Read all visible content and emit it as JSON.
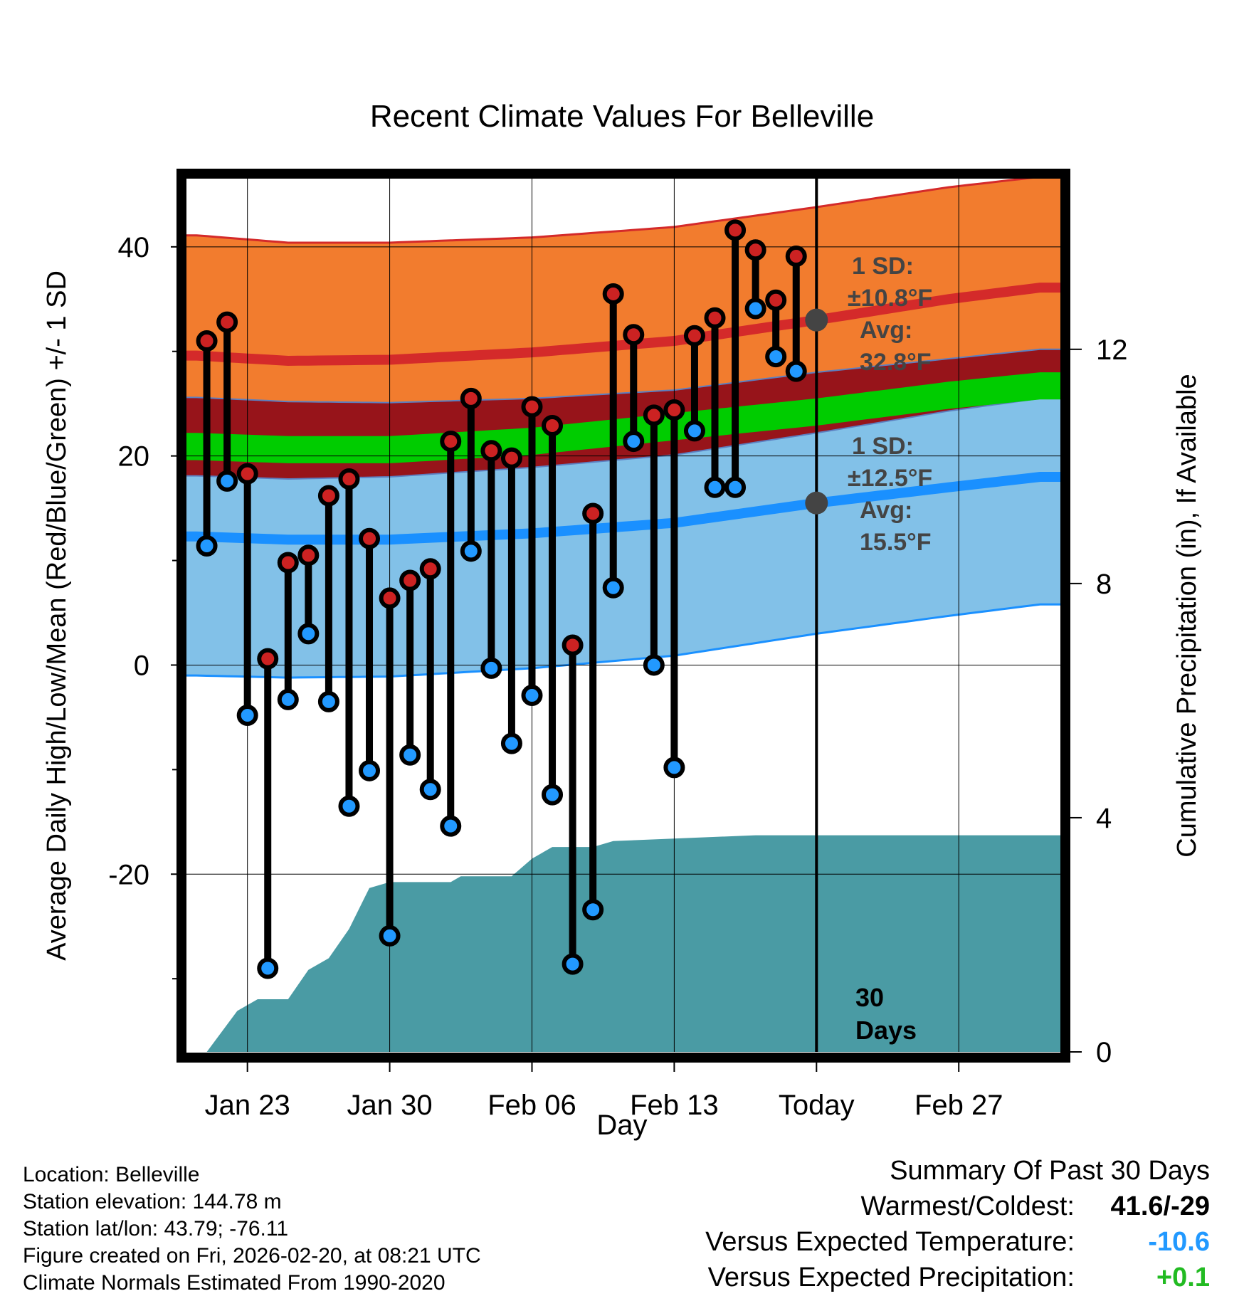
{
  "chart_data": {
    "type": "line",
    "title": "Recent Climate Values For Belleville",
    "xlabel": "Day",
    "ylabel_left": "Average Daily High/Low/Mean (Red/Blue/Green) +/- 1 SD",
    "ylabel_right": "Cumulative Precipitation (in), If Available",
    "ylim": [
      -37,
      47
    ],
    "y_ticks": [
      40,
      20,
      0,
      -20
    ],
    "y_ticks_labels": [
      "40",
      "20",
      "0",
      "-20"
    ],
    "y2lim": [
      0,
      15
    ],
    "y2_ticks": [
      12,
      8,
      4,
      0
    ],
    "y2_ticks_labels": [
      "12",
      "8",
      "4",
      "0"
    ],
    "x_start_day": 0,
    "x_end_day": 43,
    "today_day": 30,
    "x_ticks": [
      {
        "day": 3,
        "label": "Jan 23"
      },
      {
        "day": 10,
        "label": "Jan 30"
      },
      {
        "day": 17,
        "label": "Feb 06"
      },
      {
        "day": 24,
        "label": "Feb 13"
      },
      {
        "day": 31,
        "label": "Today"
      },
      {
        "day": 38,
        "label": "Feb 27"
      }
    ],
    "normals": {
      "days": [
        0.5,
        5,
        10,
        17,
        24,
        31,
        37.5,
        42
      ],
      "high_avg": [
        29.6,
        29.1,
        29.2,
        29.9,
        31.0,
        33.0,
        35.0,
        36.1
      ],
      "high_sd": [
        11.5,
        11.3,
        11.2,
        11.0,
        10.9,
        10.8,
        10.7,
        10.6
      ],
      "mean_avg": [
        20.9,
        20.6,
        20.6,
        21.4,
        22.8,
        24.2,
        25.8,
        26.7
      ],
      "low_avg": [
        12.3,
        12.0,
        12.0,
        12.6,
        13.6,
        15.5,
        17.0,
        18.0
      ],
      "low_sd": [
        13.3,
        13.2,
        13.1,
        12.9,
        12.7,
        12.5,
        12.3,
        12.2
      ]
    },
    "series": [
      {
        "name": "High",
        "color": "#cc2222",
        "values": [
          31.0,
          32.8,
          18.3,
          0.6,
          9.8,
          10.5,
          16.2,
          17.8,
          12.1,
          6.4,
          8.1,
          9.2,
          21.4,
          25.5,
          20.5,
          19.8,
          24.7,
          22.9,
          1.9,
          14.5,
          35.5,
          31.6,
          23.9,
          24.4,
          31.5,
          33.2,
          41.6,
          39.7,
          34.9,
          39.1
        ]
      },
      {
        "name": "Low",
        "color": "#2299ff",
        "values": [
          11.4,
          17.6,
          -4.8,
          -29.0,
          -3.3,
          3.0,
          -3.5,
          -13.5,
          -10.1,
          -25.9,
          -8.6,
          -11.9,
          -15.4,
          10.9,
          -0.3,
          -7.5,
          -2.9,
          -12.4,
          -28.6,
          -23.4,
          7.4,
          21.4,
          0.0,
          -9.8,
          22.4,
          17.0,
          17.0,
          34.1,
          29.5,
          28.1
        ]
      }
    ],
    "precip": {
      "days": [
        1.0,
        2.5,
        3.5,
        5,
        6,
        7,
        8,
        9,
        10,
        11,
        12,
        13,
        13.5,
        16,
        17,
        18,
        19,
        20,
        21,
        28,
        31,
        43
      ],
      "values": [
        0.0,
        0.7,
        0.9,
        0.9,
        1.4,
        1.6,
        2.1,
        2.8,
        2.9,
        2.9,
        2.9,
        2.9,
        3.0,
        3.0,
        3.3,
        3.5,
        3.5,
        3.5,
        3.6,
        3.7,
        3.7,
        3.7
      ]
    },
    "annotations": {
      "high_sd": "1 SD:",
      "high_sd_val": "±10.8°F",
      "high_avg": "Avg:",
      "high_avg_val": "32.8°F",
      "low_sd": "1 SD:",
      "low_sd_val": "±12.5°F",
      "low_avg": "Avg:",
      "low_avg_val": "15.5°F",
      "days_count": "30",
      "days_word": "Days"
    },
    "colors": {
      "high_band": "#f27c2e",
      "high_line": "#d42a2a",
      "mean_band": "#97141a",
      "mean_line": "#00cc00",
      "low_band": "#82c1e8",
      "low_line": "#1a90ff",
      "precip": "#4a9ba4"
    }
  },
  "footer": {
    "location": "Location: Belleville",
    "elevation": "Station elevation: 144.78 m",
    "latlon": "Station lat/lon: 43.79; -76.11",
    "created": "Figure created on Fri, 2026-02-20, at 08:21 UTC",
    "normals": "Climate Normals Estimated From 1990-2020"
  },
  "summary": {
    "title": "Summary Of Past 30 Days",
    "warm_label": "Warmest/Coldest:",
    "warm_value": "41.6/-29",
    "temp_label": "Versus Expected Temperature:",
    "temp_value": "-10.6",
    "temp_color": "#2299ff",
    "precip_label": "Versus Expected Precipitation:",
    "precip_value": "+0.1",
    "precip_color": "#22bb22"
  }
}
